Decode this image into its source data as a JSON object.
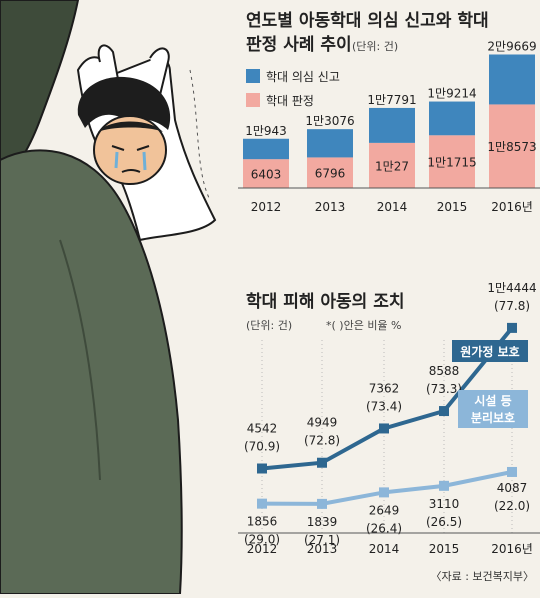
{
  "chart_data": [
    {
      "type": "bar",
      "title": "연도별 아동학대 의심 신고와 학대",
      "title_line2": "판정 사례 추이",
      "unit": "(단위: 건)",
      "categories": [
        "2012",
        "2013",
        "2014",
        "2015",
        "2016년"
      ],
      "legend": [
        "학대 의심 신고",
        "학대 판정"
      ],
      "series": [
        {
          "name": "학대 의심 신고",
          "values": [
            10943,
            13076,
            17791,
            19214,
            29669
          ],
          "labels": [
            "1만943",
            "1만3076",
            "1만7791",
            "1만9214",
            "2만9669"
          ],
          "color": "#3f86bd"
        },
        {
          "name": "학대 판정",
          "values": [
            6403,
            6796,
            10027,
            11715,
            18573
          ],
          "labels": [
            "6403",
            "6796",
            "1만27",
            "1만1715",
            "1만8573"
          ],
          "color": "#f2a9a0"
        }
      ]
    },
    {
      "type": "line",
      "title": "학대 피해 아동의 조치",
      "unit": "(단위: 건)",
      "unit_note": "*( )안은 비율 %",
      "categories": [
        "2012",
        "2013",
        "2014",
        "2015",
        "2016년"
      ],
      "series": [
        {
          "name": "원가정 보호",
          "values": [
            4542,
            4949,
            7362,
            8588,
            14444
          ],
          "labels": [
            "4542",
            "4949",
            "7362",
            "8588",
            "1만4444"
          ],
          "pct": [
            "(70.9)",
            "(72.8)",
            "(73.4)",
            "(73.3)",
            "(77.8)"
          ],
          "color": "#2e6790"
        },
        {
          "name": "시설 등 분리보호",
          "name_line1": "시설 등",
          "name_line2": "분리보호",
          "values": [
            1856,
            1839,
            2649,
            3110,
            4087
          ],
          "labels": [
            "1856",
            "1839",
            "2649",
            "3110",
            "4087"
          ],
          "pct": [
            "(29.0)",
            "(27.1)",
            "(26.4)",
            "(26.5)",
            "(22.0)"
          ],
          "color": "#8cb6d9"
        }
      ]
    }
  ],
  "source": "〈자료 : 보건복지부〉",
  "colors": {
    "background": "#f4f1ea",
    "coat": "#5b6a56",
    "line_dark": "#2e6790",
    "line_light": "#8cb6d9"
  }
}
